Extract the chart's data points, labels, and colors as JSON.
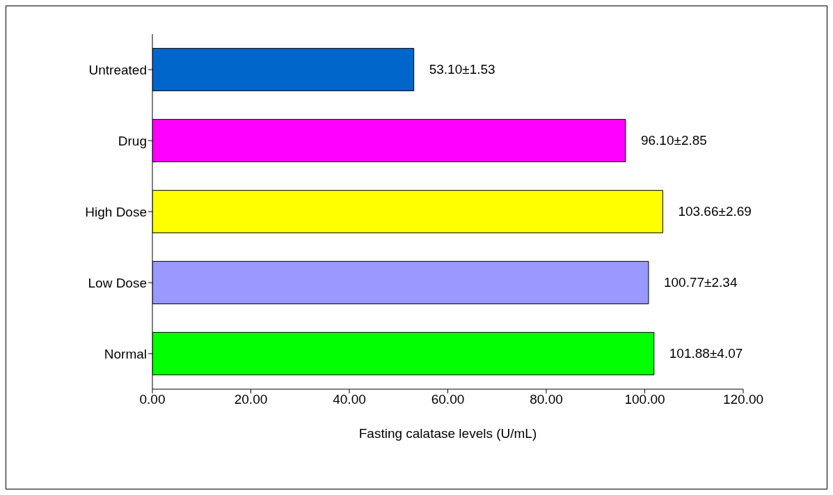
{
  "chart_data": {
    "type": "bar",
    "orientation": "horizontal",
    "xlabel": "Fasting calatase levels (U/mL)",
    "categories": [
      "Untreated",
      "Drug",
      "High Dose",
      "Low Dose",
      "Normal"
    ],
    "values": [
      53.1,
      96.1,
      103.66,
      100.77,
      101.88
    ],
    "colors": [
      "#0066cc",
      "#ff00ff",
      "#ffff00",
      "#9999ff",
      "#00ff00"
    ],
    "value_labels": [
      "53.10±1.53",
      "96.10±2.85",
      "103.66±2.69",
      "100.77±2.34",
      "101.88±4.07"
    ],
    "xlim": [
      0,
      120
    ],
    "xticks": [
      {
        "value": 0,
        "label": "0.00"
      },
      {
        "value": 20,
        "label": "20.00"
      },
      {
        "value": 40,
        "label": "40.00"
      },
      {
        "value": 60,
        "label": "60.00"
      },
      {
        "value": 80,
        "label": "80.00"
      },
      {
        "value": 100,
        "label": "100.00"
      },
      {
        "value": 120,
        "label": "120.00"
      }
    ],
    "grid": false,
    "legend": false
  }
}
